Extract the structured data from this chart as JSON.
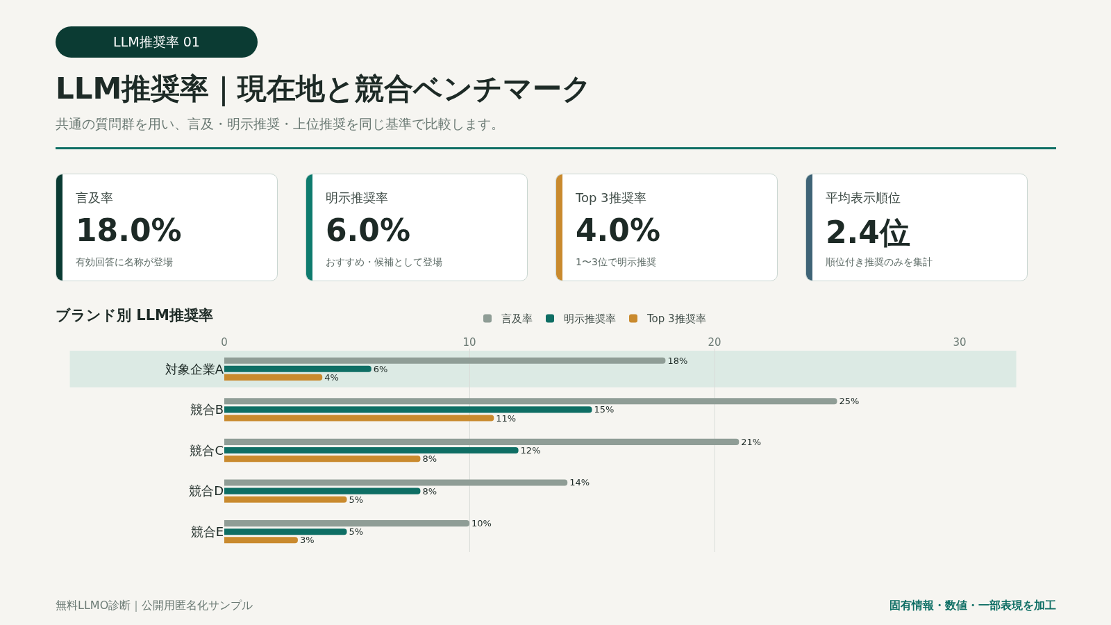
{
  "chart_data": [
    {
      "type": "other",
      "title": "LLM推奨率｜現在地と競合ベンチマーク",
      "subtitle": "共通の質問群を用い、言及・明示推奨・上位推奨を同じ基準で比較します。",
      "annotations": [
        "LLM推奨率 01",
        "無料LLMO診断｜公開用匿名化サンプル",
        "固有情報・数値・一部表現を加工"
      ]
    },
    {
      "type": "other",
      "title": "言及率",
      "color": "#0b3b33",
      "annotations": [
        "18.0%",
        "有効回答に名称が登場"
      ]
    },
    {
      "type": "other",
      "title": "明示推奨率",
      "color": "#0e7b6e",
      "annotations": [
        "6.0%",
        "おすすめ・候補として登場"
      ]
    },
    {
      "type": "other",
      "title": "Top 3推奨率",
      "color": "#c98a2e",
      "annotations": [
        "4.0%",
        "1〜3位で明示推奨"
      ]
    },
    {
      "type": "other",
      "title": "平均表示順位",
      "color": "#3f6477",
      "annotations": [
        "2.4位",
        "順位付き推奨のみを集計"
      ]
    },
    {
      "type": "bar",
      "orientation": "horizontal",
      "title": "ブランド別 LLM推奨率",
      "categories": [
        "対象企業A",
        "競合B",
        "競合C",
        "競合D",
        "競合E"
      ],
      "series": [
        {
          "name": "言及率",
          "color": "#8f9d96",
          "values": [
            18,
            25,
            21,
            14,
            10
          ],
          "value_labels": [
            "18%",
            "25%",
            "21%",
            "14%",
            "10%"
          ]
        },
        {
          "name": "明示推奨率",
          "color": "#0e6e64",
          "values": [
            6,
            15,
            12,
            8,
            5
          ],
          "value_labels": [
            "6%",
            "15%",
            "12%",
            "8%",
            "5%"
          ]
        },
        {
          "name": "Top 3推奨率",
          "color": "#c98a2e",
          "values": [
            4,
            11,
            8,
            5,
            3
          ],
          "value_labels": [
            "4%",
            "11%",
            "8%",
            "5%",
            "3%"
          ]
        }
      ],
      "xlim": [
        0,
        30
      ],
      "xticks": [
        0,
        10,
        20,
        30
      ],
      "grid": "x",
      "legend": "top",
      "bands": [
        {
          "axis": "y",
          "from": "対象企業A",
          "to": "対象企業A",
          "color": "#dceae4"
        }
      ]
    }
  ]
}
